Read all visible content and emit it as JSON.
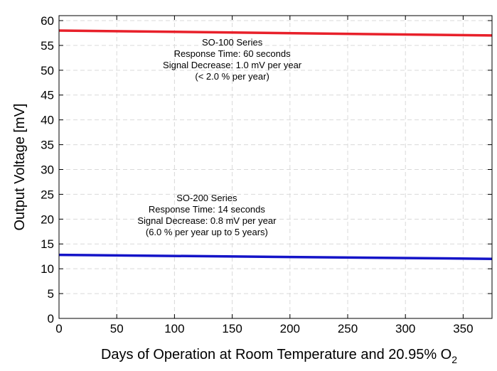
{
  "chart_data": {
    "type": "line",
    "xlabel": "Days of Operation at Room Temperature and 20.95% O",
    "xlabel_subscript": "2",
    "ylabel": "Output Voltage [mV]",
    "xlim": [
      0,
      375
    ],
    "ylim": [
      0,
      61
    ],
    "grid": true,
    "x_ticks": [
      0,
      50,
      100,
      150,
      200,
      250,
      300,
      350
    ],
    "y_ticks": [
      0,
      5,
      10,
      15,
      20,
      25,
      30,
      35,
      40,
      45,
      50,
      55,
      60
    ],
    "series": [
      {
        "color": "#e8202a",
        "x": [
          0,
          375
        ],
        "y": [
          58.0,
          57.0
        ]
      },
      {
        "color": "#1414c8",
        "x": [
          0,
          375
        ],
        "y": [
          12.8,
          12.0
        ]
      }
    ],
    "annotations": [
      {
        "x": 150,
        "y": 55,
        "lines": [
          "SO-100 Series",
          "Response Time: 60 seconds",
          "Signal Decrease: 1.0 mV per year",
          "(< 2.0 % per year)"
        ]
      },
      {
        "x": 128,
        "y": 23.6,
        "lines": [
          "SO-200 Series",
          "Response Time: 14 seconds",
          "Signal Decrease: 0.8 mV per year",
          "(6.0 % per year up to 5 years)"
        ]
      }
    ]
  }
}
